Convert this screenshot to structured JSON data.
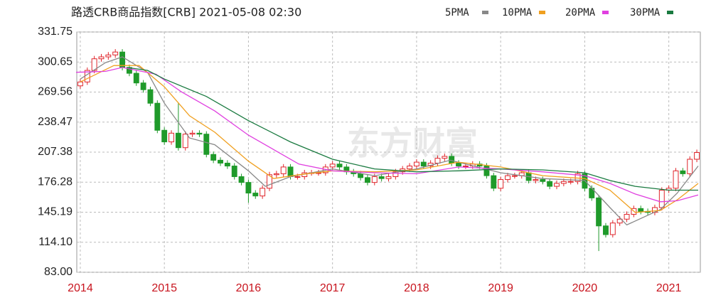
{
  "chart_data": {
    "type": "candlestick",
    "title": "路透CRB商品指数[CRB] 2021-05-08 02:30",
    "watermark": "东方财富",
    "up_color": "#e0252b",
    "down_color": "#1f9a2a",
    "categories": [
      "2014",
      null,
      null,
      null,
      null,
      null,
      null,
      null,
      null,
      null,
      null,
      null,
      "2015",
      null,
      null,
      null,
      null,
      null,
      null,
      null,
      null,
      null,
      null,
      null,
      "2016",
      null,
      null,
      null,
      null,
      null,
      null,
      null,
      null,
      null,
      null,
      null,
      "2017",
      null,
      null,
      null,
      null,
      null,
      null,
      null,
      null,
      null,
      null,
      null,
      "2018",
      null,
      null,
      null,
      null,
      null,
      null,
      null,
      null,
      null,
      null,
      null,
      "2019",
      null,
      null,
      null,
      null,
      null,
      null,
      null,
      null,
      null,
      null,
      null,
      "2020",
      null,
      null,
      null,
      null,
      null,
      null,
      null,
      null,
      null,
      null,
      null,
      "2021",
      null,
      null,
      null,
      null
    ],
    "open": [
      276,
      280,
      292,
      304,
      306,
      308,
      311,
      295,
      289,
      279,
      272,
      258,
      230,
      218,
      227,
      212,
      226,
      227,
      226,
      205,
      199,
      196,
      193,
      182,
      176,
      165,
      162,
      170,
      184,
      185,
      192,
      182,
      182,
      186,
      186,
      186,
      192,
      195,
      192,
      187,
      185,
      181,
      176,
      182,
      180,
      182,
      187,
      190,
      193,
      197,
      193,
      196,
      201,
      203,
      196,
      193,
      193,
      195,
      193,
      183,
      170,
      179,
      183,
      183,
      186,
      178,
      179,
      177,
      172,
      175,
      177,
      177,
      185,
      170,
      160,
      131,
      122,
      134,
      138,
      143,
      149,
      146,
      145,
      150,
      168,
      170,
      188,
      185,
      200
    ],
    "high": [
      283,
      295,
      307,
      309,
      311,
      314,
      314,
      298,
      292,
      282,
      275,
      261,
      233,
      230,
      258,
      229,
      230,
      230,
      229,
      208,
      202,
      199,
      196,
      185,
      179,
      168,
      173,
      187,
      188,
      195,
      195,
      185,
      189,
      189,
      189,
      195,
      198,
      198,
      195,
      190,
      188,
      184,
      185,
      185,
      185,
      190,
      193,
      196,
      200,
      200,
      199,
      204,
      206,
      206,
      199,
      196,
      198,
      198,
      196,
      186,
      182,
      186,
      186,
      189,
      189,
      182,
      182,
      180,
      178,
      180,
      180,
      188,
      188,
      173,
      163,
      134,
      137,
      141,
      146,
      152,
      152,
      149,
      153,
      171,
      173,
      191,
      191,
      203,
      210
    ],
    "low": [
      273,
      277,
      289,
      301,
      303,
      305,
      292,
      286,
      276,
      269,
      255,
      227,
      215,
      215,
      209,
      209,
      223,
      223,
      202,
      196,
      193,
      190,
      179,
      173,
      155,
      159,
      159,
      167,
      181,
      182,
      179,
      179,
      179,
      183,
      183,
      183,
      189,
      189,
      184,
      182,
      178,
      173,
      173,
      177,
      177,
      179,
      184,
      187,
      190,
      190,
      190,
      193,
      198,
      193,
      190,
      190,
      190,
      190,
      180,
      167,
      167,
      176,
      180,
      180,
      175,
      175,
      174,
      169,
      169,
      172,
      174,
      174,
      167,
      157,
      105,
      119,
      119,
      131,
      135,
      140,
      143,
      142,
      142,
      147,
      165,
      167,
      182,
      182,
      197
    ],
    "close": [
      280,
      292,
      304,
      306,
      308,
      311,
      295,
      289,
      279,
      272,
      258,
      230,
      218,
      227,
      212,
      226,
      227,
      226,
      205,
      199,
      196,
      193,
      182,
      176,
      165,
      162,
      170,
      184,
      185,
      192,
      182,
      182,
      186,
      186,
      186,
      192,
      195,
      192,
      187,
      185,
      181,
      176,
      182,
      180,
      182,
      187,
      190,
      193,
      197,
      193,
      196,
      201,
      203,
      196,
      193,
      193,
      195,
      193,
      183,
      170,
      179,
      183,
      183,
      186,
      178,
      179,
      177,
      172,
      175,
      177,
      177,
      185,
      170,
      160,
      131,
      122,
      134,
      138,
      143,
      149,
      146,
      145,
      150,
      168,
      170,
      188,
      185,
      200,
      207
    ],
    "ylim": [
      83,
      331.75
    ],
    "yticks": [
      {
        "value": 83,
        "label": "83.00"
      },
      {
        "value": 114.1,
        "label": "114.10"
      },
      145.19,
      176.28,
      207.38,
      238.47,
      269.56,
      300.65,
      331.75
    ],
    "grid": true,
    "series": [
      {
        "name": "5PMA",
        "color": "#888888",
        "x": [
          2014.0,
          2014.3,
          2014.5,
          2014.8,
          2015.0,
          2015.3,
          2015.6,
          2016.0,
          2016.2,
          2016.5,
          2017.0,
          2017.5,
          2018.0,
          2018.4,
          2019.0,
          2019.5,
          2020.0,
          2020.3,
          2020.5,
          2020.9,
          2021.1,
          2021.35
        ],
        "values": [
          283,
          300,
          306,
          290,
          258,
          222,
          215,
          188,
          172,
          182,
          190,
          183,
          190,
          199,
          186,
          180,
          178,
          150,
          132,
          148,
          165,
          193
        ]
      },
      {
        "name": "10PMA",
        "color": "#f0a020",
        "x": [
          2014.0,
          2014.4,
          2014.7,
          2015.0,
          2015.3,
          2015.6,
          2016.0,
          2016.3,
          2016.6,
          2017.0,
          2017.5,
          2018.0,
          2018.5,
          2019.0,
          2019.5,
          2020.0,
          2020.3,
          2020.6,
          2020.9,
          2021.1,
          2021.35
        ],
        "values": [
          280,
          297,
          297,
          275,
          245,
          228,
          198,
          180,
          184,
          188,
          187,
          189,
          197,
          192,
          183,
          180,
          168,
          145,
          147,
          158,
          175
        ]
      },
      {
        "name": "20PMA",
        "color": "#e040e0",
        "x": [
          2013.95,
          2014.3,
          2014.5,
          2014.9,
          2015.2,
          2015.6,
          2016.0,
          2016.3,
          2016.6,
          2017.0,
          2017.5,
          2018.0,
          2018.5,
          2019.0,
          2019.5,
          2020.0,
          2020.3,
          2020.6,
          2020.9,
          2021.1,
          2021.35
        ],
        "values": [
          290,
          291,
          295,
          288,
          270,
          250,
          225,
          210,
          195,
          188,
          186,
          185,
          192,
          190,
          187,
          183,
          175,
          164,
          156,
          157,
          163
        ]
      },
      {
        "name": "30PMA",
        "color": "#1a7a40",
        "x": [
          2014.55,
          2014.8,
          2015.0,
          2015.5,
          2016.0,
          2016.5,
          2017.0,
          2017.5,
          2018.0,
          2018.5,
          2019.0,
          2019.5,
          2020.0,
          2020.3,
          2020.6,
          2021.0,
          2021.35
        ],
        "values": [
          295,
          292,
          283,
          265,
          240,
          218,
          200,
          190,
          187,
          188,
          190,
          189,
          186,
          178,
          172,
          168,
          168
        ]
      }
    ]
  }
}
